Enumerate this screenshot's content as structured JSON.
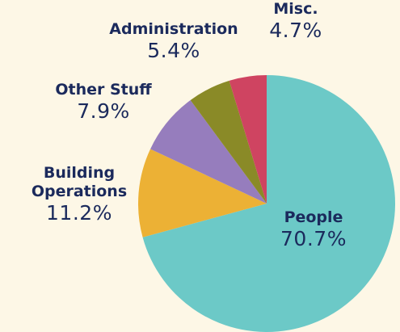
{
  "chart_data": {
    "type": "pie",
    "categories": [
      "People",
      "Building Operations",
      "Other Stuff",
      "Administration",
      "Misc."
    ],
    "values": [
      70.7,
      11.2,
      7.9,
      5.4,
      4.7
    ],
    "value_labels": [
      "70.7%",
      "11.2%",
      "7.9%",
      "5.4%",
      "4.7%"
    ],
    "colors": [
      "#6cc9c7",
      "#ecb135",
      "#967dbd",
      "#8a8a27",
      "#cf4461"
    ]
  }
}
